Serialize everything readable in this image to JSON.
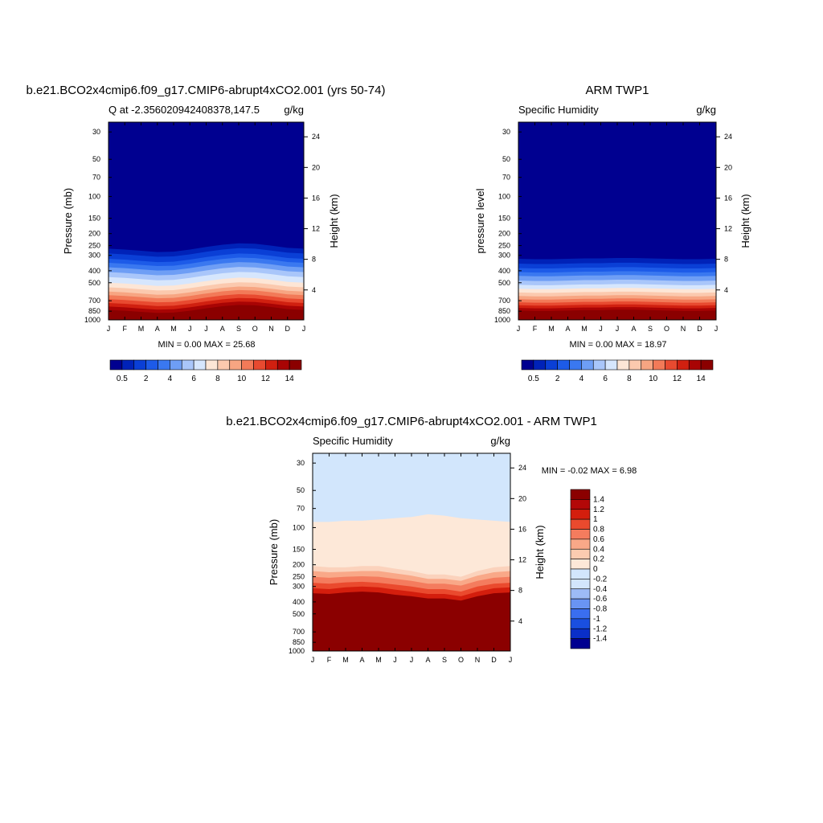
{
  "chart_data": [
    {
      "type": "heatmap",
      "title": "b.e21.BCO2x4cmip6.f09_g17.CMIP6-abrupt4xCO2.001 (yrs 50-74)",
      "left_string": "Q at -2.356020942408378,147.5",
      "right_string": "g/kg",
      "ylabel": "Pressure (mb)",
      "ylabel_right": "Height (km)",
      "x_ticks": [
        "J",
        "F",
        "M",
        "A",
        "M",
        "J",
        "J",
        "A",
        "S",
        "O",
        "N",
        "D",
        "J"
      ],
      "y_ticks": [
        "30",
        "50",
        "70",
        "100",
        "150",
        "200",
        "250",
        "300",
        "400",
        "500",
        "700",
        "850",
        "1000"
      ],
      "y_ticks_right": [
        "24",
        "20",
        "16",
        "12",
        "8",
        "4"
      ],
      "min_label": "0.00",
      "max_label": "25.68",
      "stats_text": "MIN =   0.00 MAX =  25.68",
      "colorbar_labels": [
        "0.5",
        "2",
        "4",
        "6",
        "8",
        "10",
        "12",
        "14"
      ],
      "level_boundaries_mb": [
        265,
        290,
        320,
        345,
        375,
        410,
        450,
        500,
        545,
        590,
        630,
        680,
        730,
        780,
        830,
        880
      ],
      "seasonal_shift_mb": [
        0,
        10,
        25,
        40,
        35,
        10,
        -20,
        -45,
        -60,
        -55,
        -35,
        -10,
        0
      ]
    },
    {
      "type": "heatmap",
      "title": "ARM TWP1",
      "left_string": "Specific Humidity",
      "right_string": "g/kg",
      "ylabel": "pressure level",
      "ylabel_right": "Height (km)",
      "x_ticks": [
        "J",
        "F",
        "M",
        "A",
        "M",
        "J",
        "J",
        "A",
        "S",
        "O",
        "N",
        "D",
        "J"
      ],
      "y_ticks": [
        "30",
        "50",
        "70",
        "100",
        "150",
        "200",
        "250",
        "300",
        "400",
        "500",
        "700",
        "850",
        "1000"
      ],
      "y_ticks_right": [
        "24",
        "20",
        "16",
        "12",
        "8",
        "4"
      ],
      "min_label": "0.00",
      "max_label": "18.97",
      "stats_text": "MIN =   0.00 MAX =  18.97",
      "colorbar_labels": [
        "0.5",
        "2",
        "4",
        "6",
        "8",
        "10",
        "12",
        "14"
      ],
      "level_boundaries_mb": [
        320,
        350,
        380,
        410,
        440,
        480,
        520,
        560,
        600,
        640,
        680,
        720,
        760,
        800,
        840,
        900
      ],
      "seasonal_shift_mb": [
        0,
        5,
        5,
        0,
        -5,
        -5,
        -10,
        -10,
        -5,
        0,
        5,
        5,
        0
      ]
    },
    {
      "type": "heatmap",
      "title": "b.e21.BCO2x4cmip6.f09_g17.CMIP6-abrupt4xCO2.001 - ARM TWP1",
      "left_string": "Specific Humidity",
      "right_string": "g/kg",
      "ylabel": "Pressure (mb)",
      "ylabel_right": "Height (km)",
      "x_ticks": [
        "J",
        "F",
        "M",
        "A",
        "M",
        "J",
        "J",
        "A",
        "S",
        "O",
        "N",
        "D",
        "J"
      ],
      "y_ticks": [
        "30",
        "50",
        "70",
        "100",
        "150",
        "200",
        "250",
        "300",
        "400",
        "500",
        "700",
        "850",
        "1000"
      ],
      "y_ticks_right": [
        "24",
        "20",
        "16",
        "12",
        "8",
        "4"
      ],
      "min_label": "-0.02",
      "max_label": "6.98",
      "stats_text": "MIN =  -0.02 MAX =   6.98",
      "colorbar_labels": [
        "1.4",
        "1.2",
        "1",
        "0.8",
        "0.6",
        "0.4",
        "0.2",
        "0",
        "-0.2",
        "-0.4",
        "-0.6",
        "-0.8",
        "-1",
        "-1.2",
        "-1.4"
      ],
      "boundary_zero_mb": [
        90,
        90,
        88,
        88,
        86,
        84,
        82,
        78,
        80,
        84,
        86,
        88,
        90
      ],
      "boundary_band_mb": [
        [
          205,
          210,
          210,
          205,
          205,
          215,
          225,
          240,
          240,
          250,
          225,
          210,
          205
        ],
        [
          225,
          230,
          228,
          225,
          225,
          235,
          245,
          260,
          260,
          270,
          245,
          230,
          225
        ],
        [
          250,
          255,
          250,
          248,
          250,
          260,
          270,
          285,
          285,
          295,
          270,
          255,
          250
        ],
        [
          280,
          285,
          278,
          275,
          280,
          290,
          300,
          315,
          315,
          330,
          300,
          285,
          280
        ],
        [
          310,
          315,
          305,
          300,
          305,
          318,
          330,
          345,
          345,
          360,
          330,
          310,
          305
        ],
        [
          340,
          345,
          335,
          330,
          335,
          350,
          360,
          375,
          375,
          390,
          360,
          340,
          335
        ]
      ]
    }
  ],
  "colors": {
    "blue_red_palette": [
      "#000090",
      "#0022b8",
      "#0a3fd6",
      "#1d5be8",
      "#3a78f0",
      "#6e9ef5",
      "#a9c6fa",
      "#d6e6fd",
      "#fde6d6",
      "#fbc9ae",
      "#f7a582",
      "#f27a58",
      "#e84a30",
      "#d02010",
      "#a80404",
      "#8b0000"
    ],
    "diff_palette": [
      "#000090",
      "#0a2fc8",
      "#1a4fe0",
      "#3a6ef0",
      "#6994f3",
      "#9dbbf6",
      "#d2e6fc",
      "#fde8d8",
      "#fccbb0",
      "#f9a888",
      "#f47c5e",
      "#ea4a2e",
      "#d41e0d",
      "#b30808",
      "#8b0000"
    ]
  }
}
